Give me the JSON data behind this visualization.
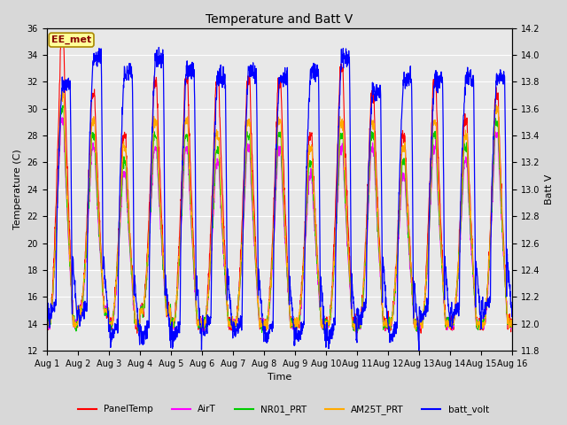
{
  "title": "Temperature and Batt V",
  "xlabel": "Time",
  "ylabel_left": "Temperature (C)",
  "ylabel_right": "Batt V",
  "annotation": "EE_met",
  "xlim_days": [
    0,
    15
  ],
  "ylim_left": [
    12,
    36
  ],
  "ylim_right": [
    11.8,
    14.2
  ],
  "yticks_left": [
    12,
    14,
    16,
    18,
    20,
    22,
    24,
    26,
    28,
    30,
    32,
    34,
    36
  ],
  "yticks_right": [
    11.8,
    12.0,
    12.2,
    12.4,
    12.6,
    12.8,
    13.0,
    13.2,
    13.4,
    13.6,
    13.8,
    14.0,
    14.2
  ],
  "xtick_labels": [
    "Aug 1",
    "Aug 2",
    "Aug 3",
    "Aug 4",
    "Aug 5",
    "Aug 6",
    "Aug 7",
    "Aug 8",
    "Aug 9",
    "Aug 10",
    "Aug 11",
    "Aug 12",
    "Aug 13",
    "Aug 14",
    "Aug 15",
    "Aug 16"
  ],
  "bg_color": "#d8d8d8",
  "plot_bg_color": "#e8e8e8",
  "grid_color": "#ffffff",
  "colors": {
    "PanelTemp": "#ff0000",
    "AirT": "#ff00ff",
    "NR01_PRT": "#00cc00",
    "AM25T_PRT": "#ffaa00",
    "batt_volt": "#0000ff"
  },
  "legend_labels": [
    "PanelTemp",
    "AirT",
    "NR01_PRT",
    "AM25T_PRT",
    "batt_volt"
  ],
  "annotation_box_color": "#ffff99",
  "annotation_text_color": "#880000",
  "annotation_border_color": "#aa8800"
}
